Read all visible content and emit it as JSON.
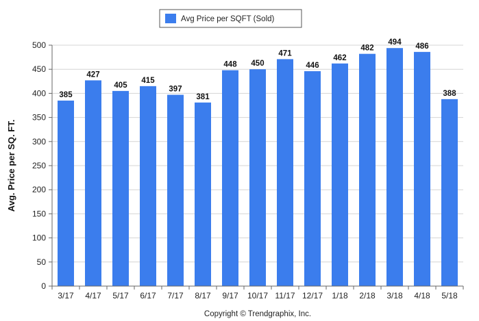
{
  "chart_data": {
    "type": "bar",
    "ylabel": "Avg. Price per SQ. FT.",
    "xlabel": "",
    "ylim": [
      0,
      500
    ],
    "yticks": [
      "0",
      "50",
      "100",
      "150",
      "200",
      "250",
      "300",
      "350",
      "400",
      "450",
      "500"
    ],
    "grid": true,
    "legend_position": "top-center",
    "categories": [
      "3/17",
      "4/17",
      "5/17",
      "6/17",
      "7/17",
      "8/17",
      "9/17",
      "10/17",
      "11/17",
      "12/17",
      "1/18",
      "2/18",
      "3/18",
      "4/18",
      "5/18"
    ],
    "series": [
      {
        "name": "Avg Price per SQFT (Sold)",
        "color": "#3b7ded",
        "values": [
          385,
          427,
          405,
          415,
          397,
          381,
          448,
          450,
          471,
          446,
          462,
          482,
          494,
          486,
          388
        ]
      }
    ],
    "footer": "Copyright © Trendgraphix, Inc."
  }
}
